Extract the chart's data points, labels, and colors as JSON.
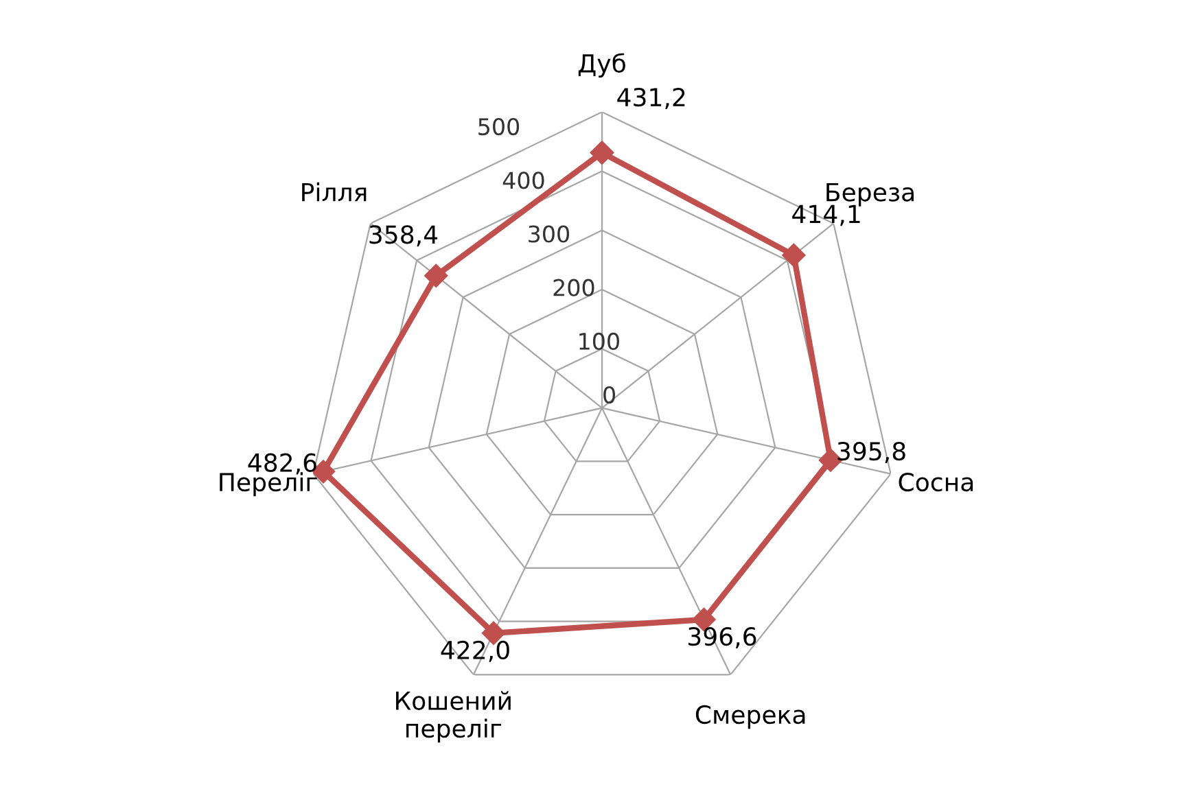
{
  "chart_data": {
    "type": "radar",
    "categories": [
      "Дуб",
      "Береза",
      "Сосна",
      "Смерека",
      "Кошений переліг",
      "Переліг",
      "Рілля"
    ],
    "series": [
      {
        "color": "#c0504d",
        "values": [
          431.2,
          414.1,
          395.8,
          396.6,
          422.0,
          482.6,
          358.4
        ],
        "value_labels": [
          "431,2",
          "414,1",
          "395,8",
          "396,6",
          "422,0",
          "482,6",
          "358,4"
        ]
      }
    ],
    "ylim": [
      0,
      500
    ],
    "yticks": [
      0,
      100,
      200,
      300,
      400,
      500
    ],
    "grid": true,
    "marker": "diamond",
    "line_style": "solid",
    "legend": false
  }
}
